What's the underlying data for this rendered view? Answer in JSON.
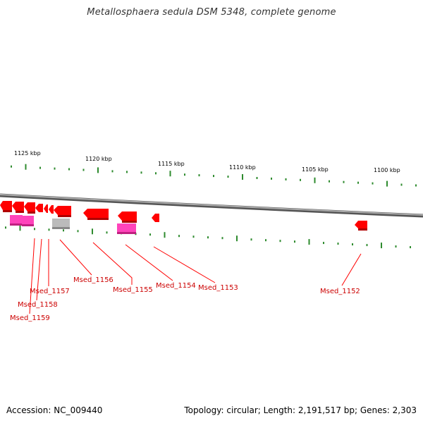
{
  "title": "Metallosphaera sedula DSM 5348, complete genome",
  "footer": {
    "accession": "Accession: NC_009440",
    "summary": "Topology: circular; Length: 2,191,517 bp; Genes: 2,303"
  },
  "scale_labels": [
    "1125 kbp",
    "1120 kbp",
    "1115 kbp",
    "1110 kbp",
    "1105 kbp",
    "1100 kbp"
  ],
  "genes": [
    "Msed_1152",
    "Msed_1153",
    "Msed_1154",
    "Msed_1155",
    "Msed_1156",
    "Msed_1157",
    "Msed_1158",
    "Msed_1159"
  ],
  "colors": {
    "cds": "#ff0000",
    "cds_dark": "#c00000",
    "rna": "#ff33aa",
    "pseudo": "#aaaaaa",
    "tick": "#2e8b2e",
    "backbone": "#888888",
    "label_line": "#ff0000"
  }
}
